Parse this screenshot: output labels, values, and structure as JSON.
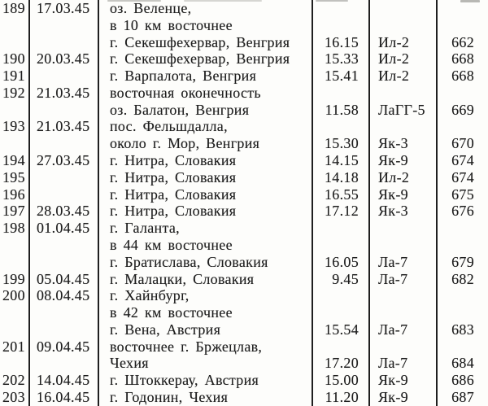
{
  "table": {
    "rows": [
      {
        "num": "189",
        "date": "17.03.45",
        "loc": "оз. Веленце,",
        "time": "",
        "type": "",
        "page": ""
      },
      {
        "num": "",
        "date": "",
        "loc": "в 10 км восточнее",
        "time": "",
        "type": "",
        "page": ""
      },
      {
        "num": "",
        "date": "",
        "loc": "г. Секешфехервар, Венгрия",
        "time": "16.15",
        "type": "Ил-2",
        "page": "662"
      },
      {
        "num": "190",
        "date": "20.03.45",
        "loc": "г. Секешфехервар, Венгрия",
        "time": "15.33",
        "type": "Ил-2",
        "page": "668"
      },
      {
        "num": "191",
        "date": "",
        "loc": "г. Варпалота, Венгрия",
        "time": "15.41",
        "type": "Ил-2",
        "page": "668"
      },
      {
        "num": "192",
        "date": "21.03.45",
        "loc": "восточная оконечность",
        "time": "",
        "type": "",
        "page": ""
      },
      {
        "num": "",
        "date": "",
        "loc": "оз. Балатон, Венгрия",
        "time": "11.58",
        "type": "ЛаГГ-5",
        "page": "669"
      },
      {
        "num": "193",
        "date": "21.03.45",
        "loc": "пос. Фельшдалла,",
        "time": "",
        "type": "",
        "page": ""
      },
      {
        "num": "",
        "date": "",
        "loc": "около г. Мор, Венгрия",
        "time": "15.30",
        "type": "Як-3",
        "page": "670"
      },
      {
        "num": "194",
        "date": "27.03.45",
        "loc": "г. Нитра, Словакия",
        "time": "14.15",
        "type": "Як-9",
        "page": "674"
      },
      {
        "num": "195",
        "date": "",
        "loc": "г. Нитра, Словакия",
        "time": "14.18",
        "type": "Ил-2",
        "page": "674"
      },
      {
        "num": "196",
        "date": "",
        "loc": "г. Нитра, Словакия",
        "time": "16.55",
        "type": "Як-9",
        "page": "675"
      },
      {
        "num": "197",
        "date": "28.03.45",
        "loc": "г. Нитра, Словакия",
        "time": "17.12",
        "type": "Як-3",
        "page": "676"
      },
      {
        "num": "198",
        "date": "01.04.45",
        "loc": "г. Галанта,",
        "time": "",
        "type": "",
        "page": ""
      },
      {
        "num": "",
        "date": "",
        "loc": "в 44 км восточнее",
        "time": "",
        "type": "",
        "page": ""
      },
      {
        "num": "",
        "date": "",
        "loc": "г. Братислава, Словакия",
        "time": "16.05",
        "type": "Ла-7",
        "page": "679"
      },
      {
        "num": "199",
        "date": "05.04.45",
        "loc": "г. Малацки, Словакия",
        "time": "9.45",
        "type": "Ла-7",
        "page": "682"
      },
      {
        "num": "200",
        "date": "08.04.45",
        "loc": "г. Хайнбург,",
        "time": "",
        "type": "",
        "page": ""
      },
      {
        "num": "",
        "date": "",
        "loc": "в 42 км восточнее",
        "time": "",
        "type": "",
        "page": ""
      },
      {
        "num": "",
        "date": "",
        "loc": "г. Вена, Австрия",
        "time": "15.54",
        "type": "Ла-7",
        "page": "683"
      },
      {
        "num": "201",
        "date": "09.04.45",
        "loc": "восточнее г. Бржецлав,",
        "time": "",
        "type": "",
        "page": ""
      },
      {
        "num": "",
        "date": "",
        "loc": "Чехия",
        "time": "17.20",
        "type": "Ла-7",
        "page": "684"
      },
      {
        "num": "202",
        "date": "14.04.45",
        "loc": "г. Штоккерау, Австрия",
        "time": "15.00",
        "type": "Як-9",
        "page": "686"
      },
      {
        "num": "203",
        "date": "16.04.45",
        "loc": "г. Годонин, Чехия",
        "time": "11.20",
        "type": "Як-9",
        "page": "687"
      }
    ]
  }
}
